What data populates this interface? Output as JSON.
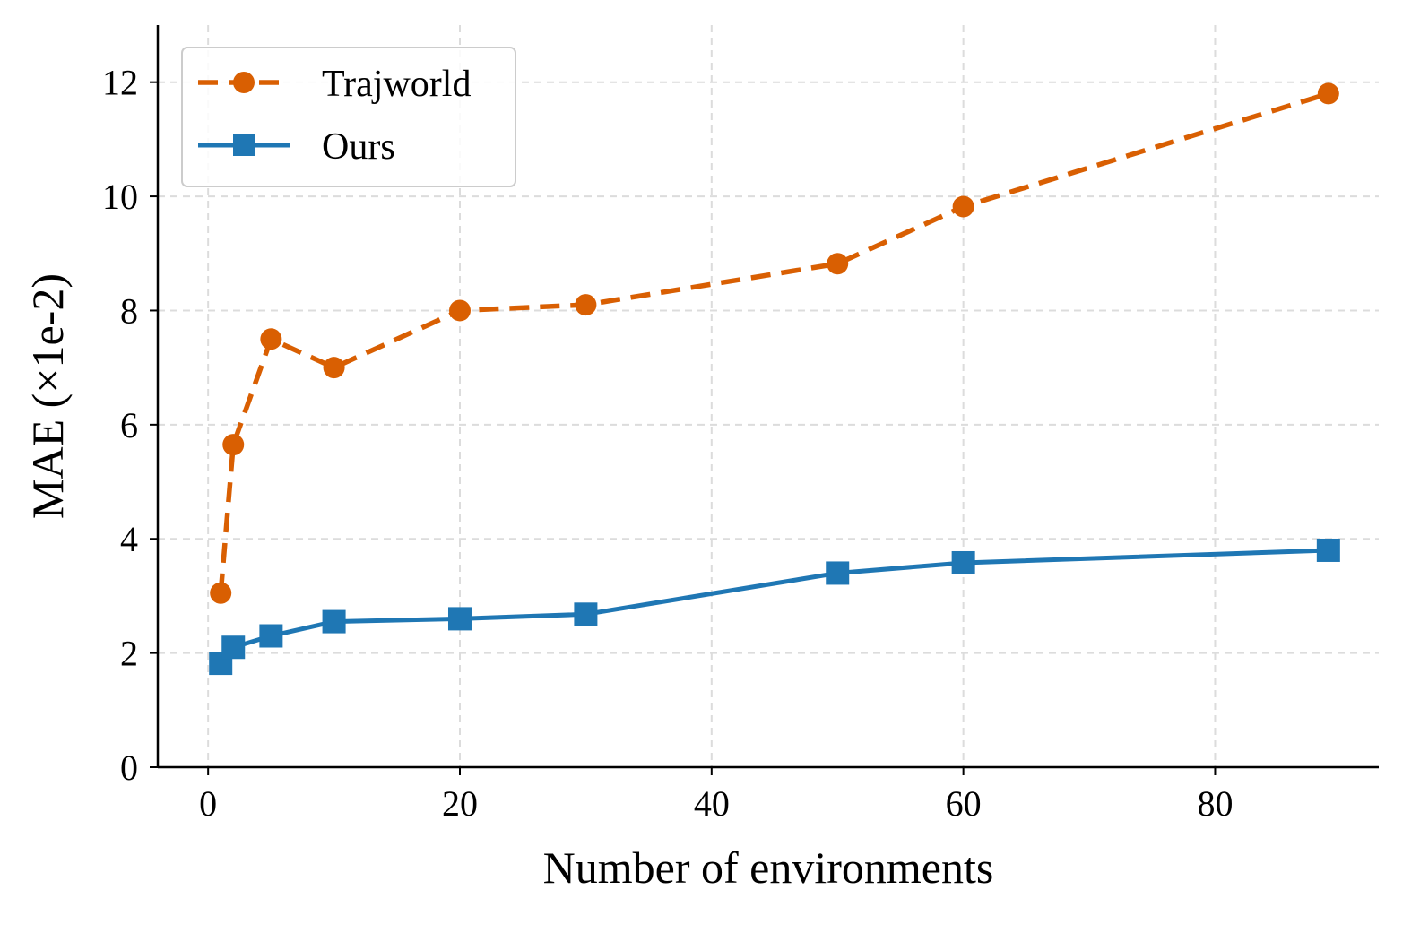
{
  "chart_data": {
    "type": "line",
    "xlabel": "Number of environments",
    "ylabel": "MAE (×1e-2)",
    "xlim": [
      -4,
      93
    ],
    "ylim": [
      0,
      13
    ],
    "xticks": [
      0,
      20,
      40,
      60,
      80
    ],
    "yticks": [
      0,
      2,
      4,
      6,
      8,
      10,
      12
    ],
    "grid": true,
    "legend_position": "upper-left",
    "series": [
      {
        "name": "Trajworld",
        "color": "#d95f02",
        "line_style": "dashed",
        "marker": "circle",
        "x": [
          1,
          2,
          5,
          10,
          20,
          30,
          50,
          60,
          89
        ],
        "y": [
          3.05,
          5.65,
          7.5,
          7.0,
          8.0,
          8.1,
          8.82,
          9.82,
          11.8
        ]
      },
      {
        "name": "Ours",
        "color": "#1f77b4",
        "line_style": "solid",
        "marker": "square",
        "x": [
          1,
          2,
          5,
          10,
          20,
          30,
          50,
          60,
          89
        ],
        "y": [
          1.82,
          2.1,
          2.3,
          2.55,
          2.6,
          2.68,
          3.4,
          3.58,
          3.8
        ]
      }
    ]
  }
}
